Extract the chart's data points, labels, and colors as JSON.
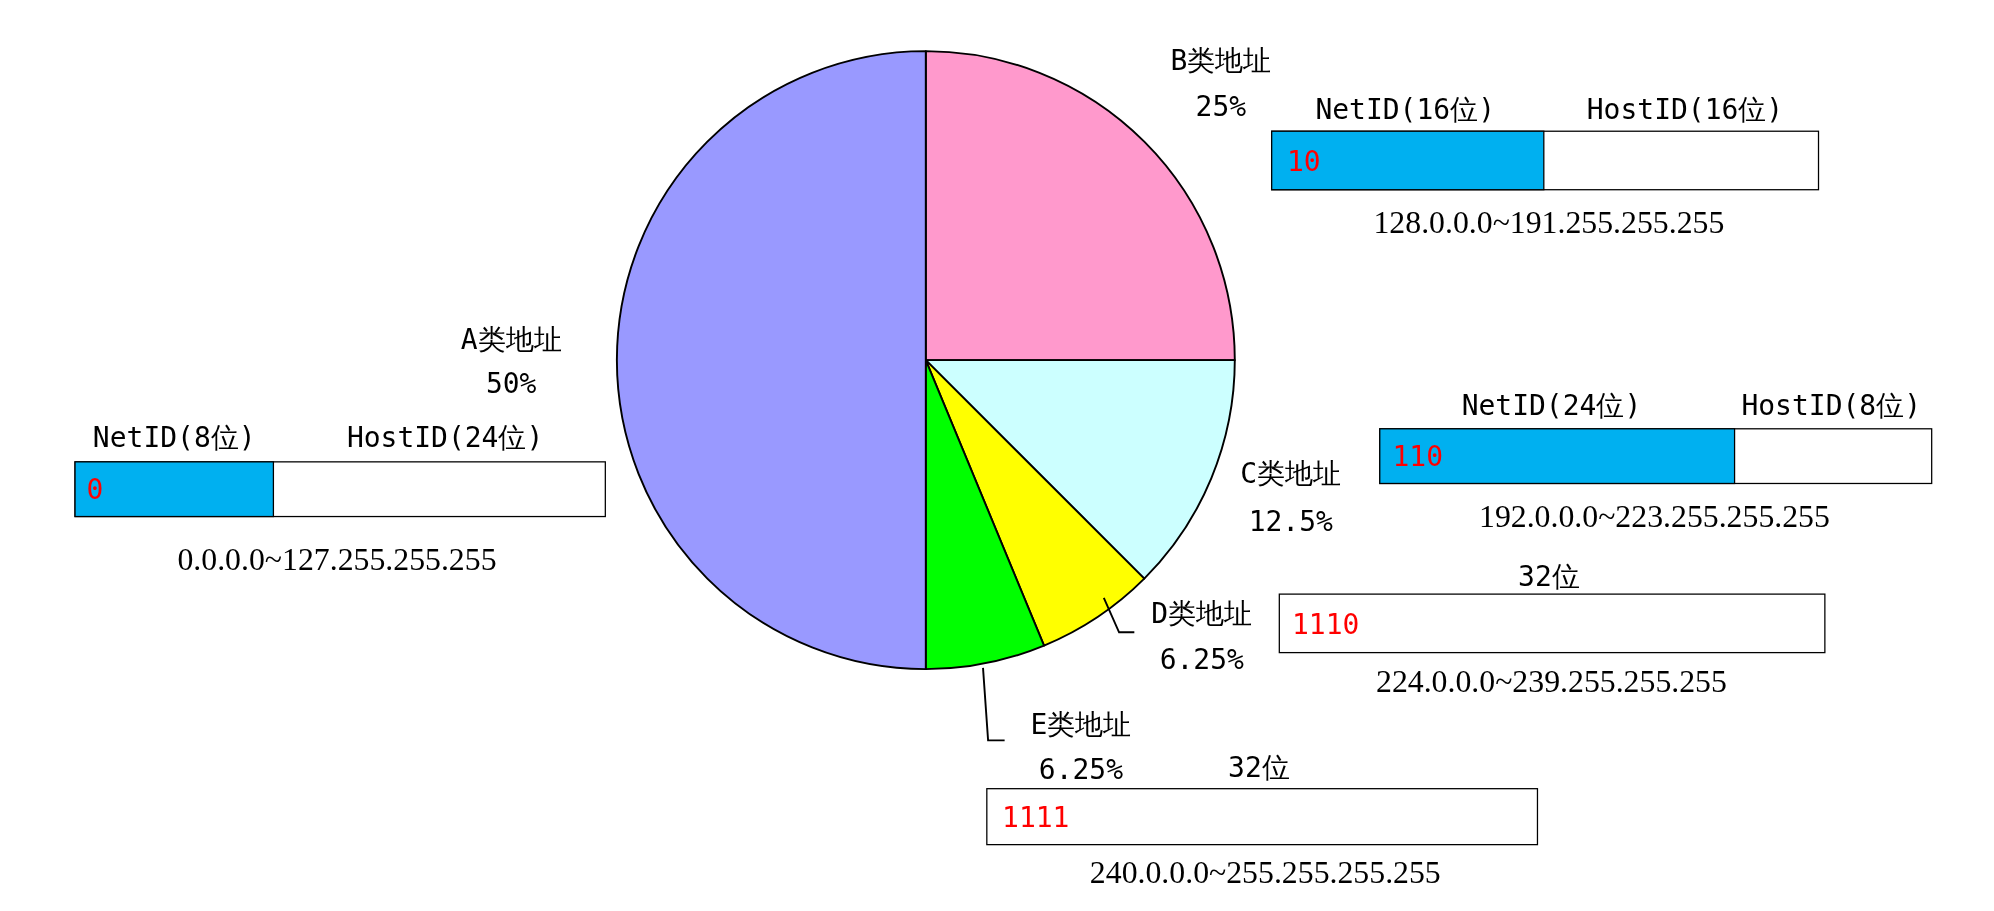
{
  "chart_data": {
    "type": "pie",
    "categories": [
      "B类地址",
      "C类地址",
      "D类地址",
      "E类地址",
      "A类地址"
    ],
    "values": [
      25,
      12.5,
      6.25,
      6.25,
      50
    ],
    "value_labels": [
      "25%",
      "12.5%",
      "6.25%",
      "6.25%",
      "50%"
    ],
    "colors": [
      "#ff99cc",
      "#ccffff",
      "#ffff00",
      "#00ff00",
      "#9999ff"
    ],
    "annotations": [
      "NetID(16位)",
      "HostID(16位)",
      "10",
      "128.0.0.0~191.255.255.255",
      "NetID(24位)",
      "HostID(8位)",
      "110",
      "192.0.0.0~223.255.255.255",
      "32位",
      "1110",
      "224.0.0.0~239.255.255.255",
      "32位",
      "1111",
      "240.0.0.0~255.255.255.255",
      "NetID(8位)",
      "HostID(24位)",
      "0",
      "0.0.0.0~127.255.255.255"
    ]
  }
}
